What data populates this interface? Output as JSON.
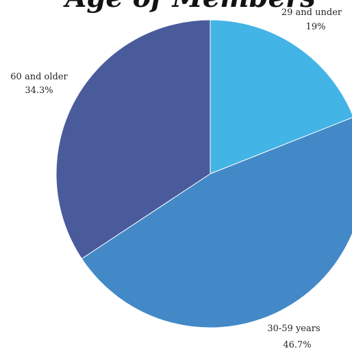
{
  "chart_data": {
    "type": "pie",
    "title": "Age of Members",
    "slices": [
      {
        "label": "29 and under",
        "value": 19,
        "value_text": "19%",
        "color": "#42b4e6"
      },
      {
        "label": "30-59 years",
        "value": 46.7,
        "value_text": "46.7%",
        "color": "#4389c7"
      },
      {
        "label": "60 and older",
        "value": 34.3,
        "value_text": "34.3%",
        "color": "#4a5b9c"
      }
    ],
    "start": "12 o'clock",
    "direction": "clockwise",
    "legend": "none"
  }
}
